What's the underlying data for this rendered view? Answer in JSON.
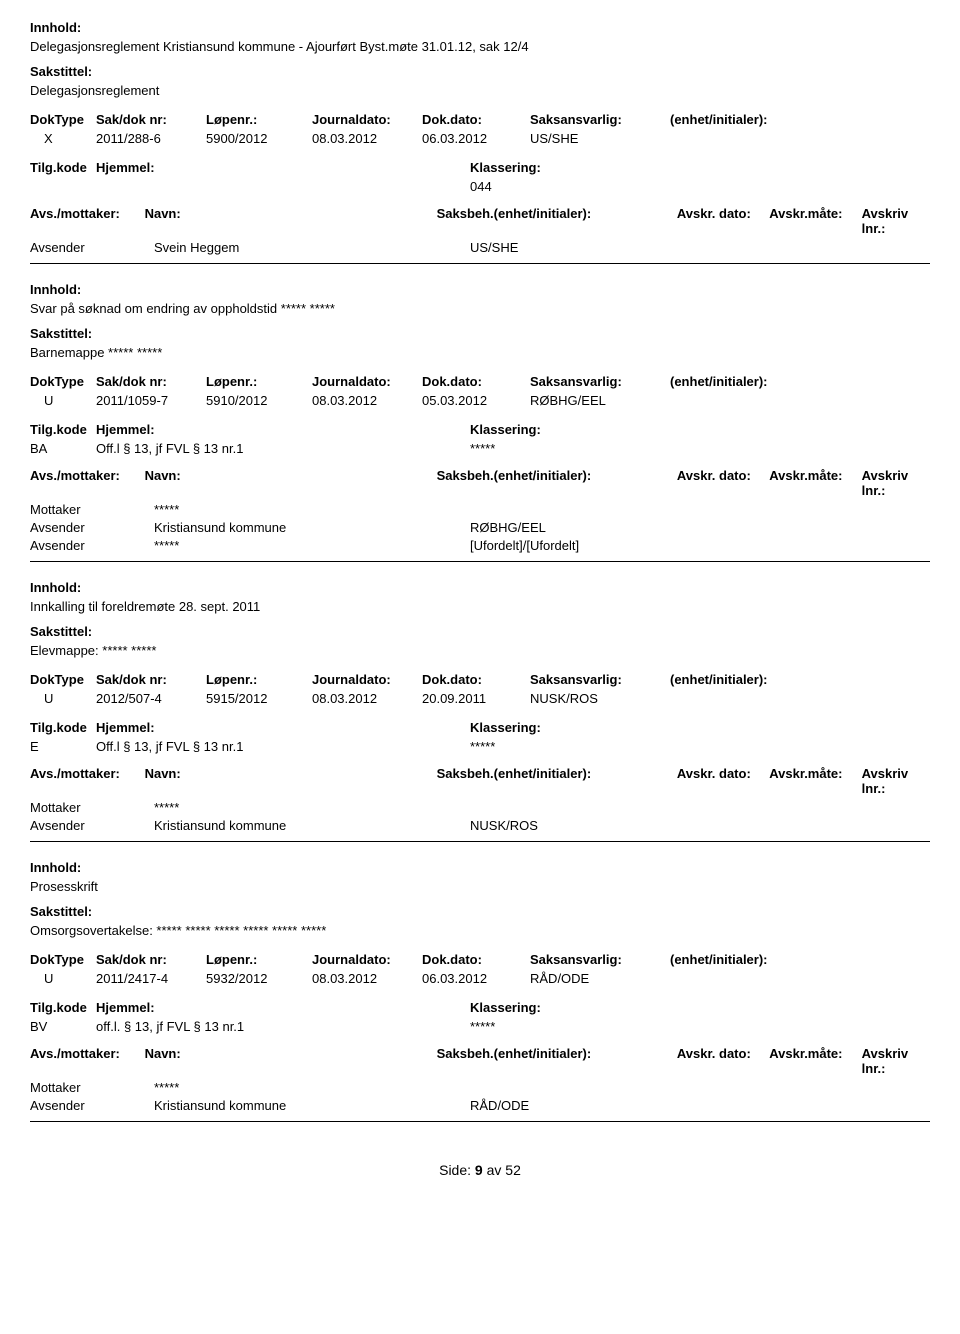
{
  "labels": {
    "innhold": "Innhold:",
    "sakstittel": "Sakstittel:",
    "doktype": "DokType",
    "sakdok": "Sak/dok nr:",
    "lopenr": "Løpenr.:",
    "journaldato": "Journaldato:",
    "dokdato": "Dok.dato:",
    "saksansvarlig": "Saksansvarlig:",
    "enhet": "(enhet/initialer):",
    "tilgkode": "Tilg.kode",
    "hjemmel": "Hjemmel:",
    "klassering": "Klassering:",
    "avsmottaker": "Avs./mottaker:",
    "navn": "Navn:",
    "saksbeh": "Saksbeh.(enhet/initialer):",
    "avskrdato": "Avskr. dato:",
    "avskrmate": "Avskr.måte:",
    "avskrivlnr": "Avskriv lnr.:",
    "mottaker": "Mottaker",
    "avsender": "Avsender"
  },
  "records": [
    {
      "innhold": "Delegasjonsreglement Kristiansund kommune - Ajourført Byst.møte 31.01.12, sak 12/4",
      "sakstittel": "Delegasjonsreglement",
      "doktype": "X",
      "sakdok": "2011/288-6",
      "lopenr": "5900/2012",
      "journaldato": "08.03.2012",
      "dokdato": "06.03.2012",
      "saksansvarlig": "US/SHE",
      "tilgkode": "",
      "hjemmel": "",
      "klassering": "044",
      "parties": [
        {
          "role": "Avsender",
          "navn": "Svein Heggem",
          "saksbeh": "US/SHE"
        }
      ]
    },
    {
      "innhold": "Svar på søknad om endring av oppholdstid ***** *****",
      "sakstittel": "Barnemappe ***** *****",
      "doktype": "U",
      "sakdok": "2011/1059-7",
      "lopenr": "5910/2012",
      "journaldato": "08.03.2012",
      "dokdato": "05.03.2012",
      "saksansvarlig": "RØBHG/EEL",
      "tilgkode": "BA",
      "hjemmel": "Off.l § 13, jf FVL § 13 nr.1",
      "klassering": "*****",
      "parties": [
        {
          "role": "Mottaker",
          "navn": "*****",
          "saksbeh": ""
        },
        {
          "role": "Avsender",
          "navn": "Kristiansund kommune",
          "saksbeh": "RØBHG/EEL"
        },
        {
          "role": "Avsender",
          "navn": "*****",
          "saksbeh": "[Ufordelt]/[Ufordelt]"
        }
      ]
    },
    {
      "innhold": "Innkalling til foreldremøte 28. sept. 2011",
      "sakstittel": "Elevmappe: ***** *****",
      "doktype": "U",
      "sakdok": "2012/507-4",
      "lopenr": "5915/2012",
      "journaldato": "08.03.2012",
      "dokdato": "20.09.2011",
      "saksansvarlig": "NUSK/ROS",
      "tilgkode": "E",
      "hjemmel": "Off.l § 13, jf FVL § 13 nr.1",
      "klassering": "*****",
      "parties": [
        {
          "role": "Mottaker",
          "navn": "*****",
          "saksbeh": ""
        },
        {
          "role": "Avsender",
          "navn": "Kristiansund kommune",
          "saksbeh": "NUSK/ROS"
        }
      ]
    },
    {
      "innhold": "Prosesskrift",
      "sakstittel": "Omsorgsovertakelse:  ***** ***** ***** ***** ***** *****",
      "doktype": "U",
      "sakdok": "2011/2417-4",
      "lopenr": "5932/2012",
      "journaldato": "08.03.2012",
      "dokdato": "06.03.2012",
      "saksansvarlig": "RÅD/ODE",
      "tilgkode": "BV",
      "hjemmel": "off.l. § 13, jf FVL § 13 nr.1",
      "klassering": "*****",
      "parties": [
        {
          "role": "Mottaker",
          "navn": "*****",
          "saksbeh": ""
        },
        {
          "role": "Avsender",
          "navn": "Kristiansund kommune",
          "saksbeh": "RÅD/ODE"
        }
      ]
    }
  ],
  "footer": {
    "prefix": "Side:",
    "page": "9",
    "av": "av",
    "total": "52"
  }
}
